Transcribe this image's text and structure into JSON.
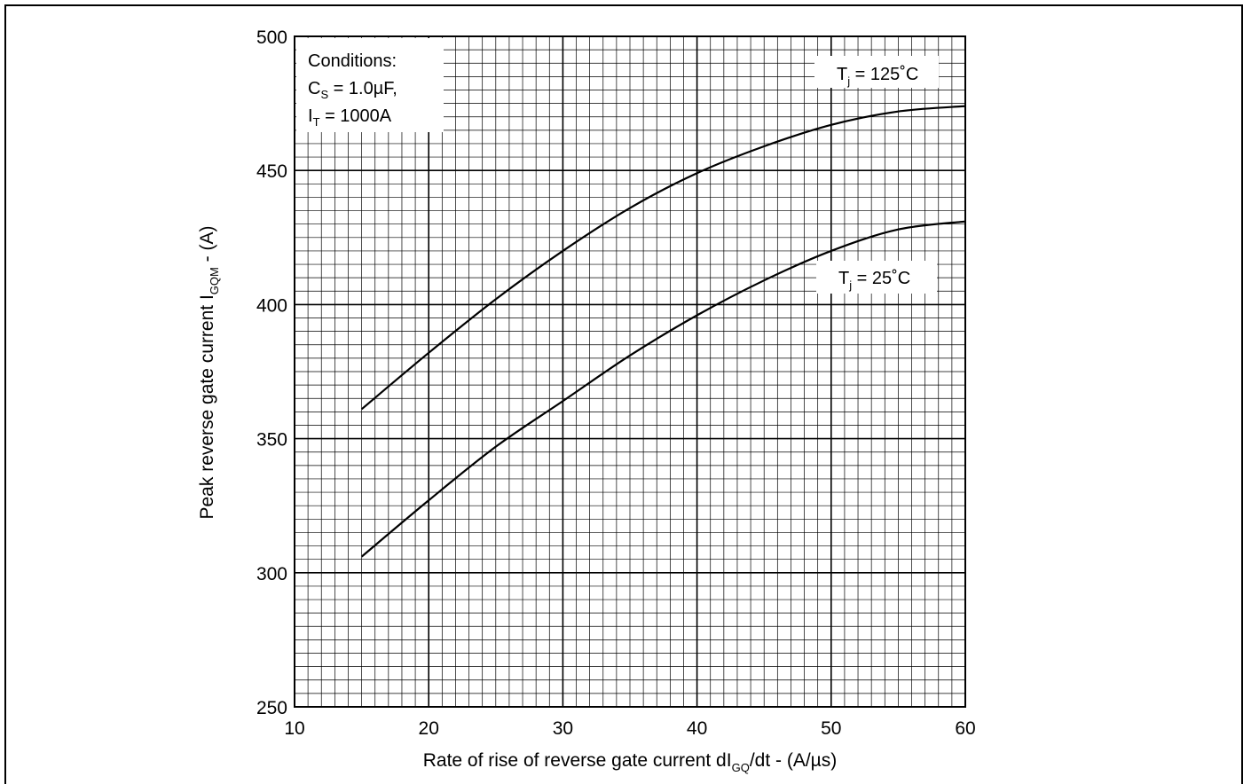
{
  "chart_data": {
    "type": "line",
    "xlabel": {
      "main": "Rate of rise of reverse gate current dI",
      "sub": "GQ",
      "tail": "/dt - (A/µs)"
    },
    "ylabel": {
      "main": "Peak reverse gate current I",
      "sub": "GQM",
      "tail": " - (A)"
    },
    "xlim": [
      10,
      60
    ],
    "ylim": [
      250,
      500
    ],
    "x_ticks": [
      10,
      20,
      30,
      40,
      50,
      60
    ],
    "y_ticks": [
      250,
      300,
      350,
      400,
      450,
      500
    ],
    "grid": {
      "shown": true,
      "minor_x_step": 1,
      "minor_y_step": 5,
      "major_x_step": 10,
      "major_y_step": 50
    },
    "conditions": {
      "line1": "Conditions:",
      "line2_pre": "C",
      "line2_sub": "S",
      "line2_post": " = 1.0µF,",
      "line3_pre": "I",
      "line3_sub": "T",
      "line3_post": " = 1000A"
    },
    "series": [
      {
        "name": "T_j = 125°C",
        "label_pre": "T",
        "label_sub": "j",
        "label_post": " = 125˚C",
        "x": [
          15,
          20,
          25,
          30,
          35,
          40,
          45,
          50,
          55,
          60
        ],
        "y": [
          361,
          382,
          402,
          420,
          436,
          449,
          459,
          467,
          472,
          474
        ]
      },
      {
        "name": "T_j = 25°C",
        "label_pre": "T",
        "label_sub": "j",
        "label_post": " = 25˚C",
        "x": [
          15,
          20,
          25,
          30,
          35,
          40,
          45,
          50,
          55,
          60
        ],
        "y": [
          306,
          327,
          347,
          364,
          381,
          396,
          409,
          420,
          428,
          431
        ]
      }
    ]
  }
}
